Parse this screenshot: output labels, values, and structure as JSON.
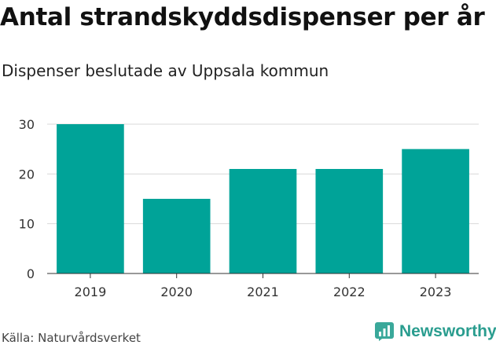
{
  "chart_data": {
    "type": "bar",
    "title": "Antal strandskyddsdispenser per år",
    "subtitle": "Dispenser beslutade av Uppsala kommun",
    "categories": [
      "2019",
      "2020",
      "2021",
      "2022",
      "2023"
    ],
    "values": [
      30,
      15,
      21,
      21,
      25
    ],
    "ylim": [
      0,
      30
    ],
    "yticks": [
      0,
      10,
      20,
      30
    ],
    "xlabel": "",
    "ylabel": "",
    "grid": true,
    "bar_color": "#00a398"
  },
  "footer": {
    "source": "Källa: Naturvårdsverket",
    "brand": "Newsworthy",
    "brand_icon": "newsworthy-logo-icon",
    "brand_color": "#2a9d8f"
  }
}
